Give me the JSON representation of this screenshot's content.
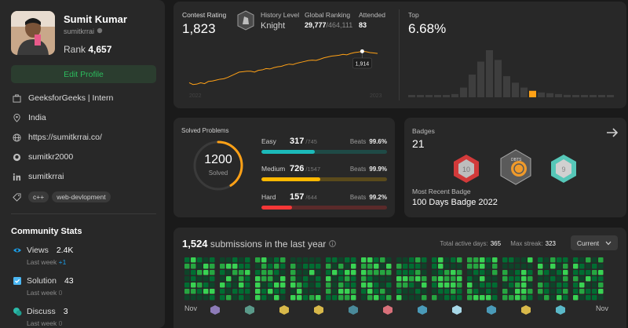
{
  "profile": {
    "name": "Sumit Kumar",
    "username": "sumitkrrai",
    "rank_label": "Rank",
    "rank_value": "4,657",
    "edit_label": "Edit Profile",
    "organization": "GeeksforGeeks | Intern",
    "location": "India",
    "website": "https://sumitkrrai.co/",
    "github": "sumitkr2000",
    "linkedin": "sumitkrrai",
    "skills": [
      "c++",
      "web-devlopment"
    ]
  },
  "community": {
    "title": "Community Stats",
    "items": [
      {
        "label": "Views",
        "value": "2.4K",
        "sub_label": "Last week",
        "sub_value": "+1",
        "color": "#1b9ee8"
      },
      {
        "label": "Solution",
        "value": "43",
        "sub_label": "Last week",
        "sub_value": "0",
        "color": "#4bb6f2"
      },
      {
        "label": "Discuss",
        "value": "3",
        "sub_label": "Last week",
        "sub_value": "0",
        "color": "#2cbbaa"
      }
    ]
  },
  "contest": {
    "rating_label": "Contest Rating",
    "rating_value": "1,823",
    "level_label": "History Level",
    "level_value": "Knight",
    "global_label": "Global Ranking",
    "global_rank": "29,777",
    "global_total": "/464,111",
    "attended_label": "Attended",
    "attended_value": "83",
    "tooltip_value": "1,914",
    "axis_start": "2022",
    "axis_end": "2023",
    "top_label": "Top",
    "top_value": "6.68%",
    "line_color": "#ffa116",
    "rating_series": [
      1560,
      1540,
      1545,
      1560,
      1550,
      1575,
      1580,
      1590,
      1600,
      1605,
      1620,
      1640,
      1660,
      1680,
      1685,
      1690,
      1690,
      1680,
      1700,
      1705,
      1720,
      1715,
      1730,
      1740,
      1745,
      1760,
      1770,
      1765,
      1780,
      1790,
      1800,
      1810,
      1815,
      1812,
      1825,
      1840,
      1850,
      1860,
      1865,
      1870,
      1880,
      1875,
      1890,
      1900,
      1905,
      1914,
      1910,
      1900,
      1895,
      1890
    ],
    "distribution": [
      2,
      2,
      2,
      2,
      2,
      4,
      12,
      28,
      44,
      58,
      46,
      26,
      18,
      12,
      8,
      6,
      5,
      4,
      3,
      2,
      2,
      2,
      2,
      2
    ]
  },
  "solved": {
    "title": "Solved Problems",
    "total": "1200",
    "total_label": "Solved",
    "rows": [
      {
        "label": "Easy",
        "count": "317",
        "total": "/745",
        "beats_label": "Beats",
        "beats": "99.6%",
        "fraction": 0.4255,
        "color": "#1cbaba",
        "track": "#1f4a46"
      },
      {
        "label": "Medium",
        "count": "726",
        "total": "/1547",
        "beats_label": "Beats",
        "beats": "99.9%",
        "fraction": 0.4693,
        "color": "#ffb800",
        "track": "#5a4a1c"
      },
      {
        "label": "Hard",
        "count": "157",
        "total": "/644",
        "beats_label": "Beats",
        "beats": "99.2%",
        "fraction": 0.2438,
        "color": "#f63737",
        "track": "#5a2a2a"
      }
    ],
    "ring_fraction": 0.41
  },
  "badges": {
    "label": "Badges",
    "count": "21",
    "recent_label": "Most Recent Badge",
    "recent_name": "100 Days Badge 2022",
    "badge_texts": [
      "10",
      "DBTS",
      "9"
    ]
  },
  "submissions": {
    "count": "1,524",
    "title_rest": "submissions in the last year",
    "active_label": "Total active days:",
    "active_value": "365",
    "streak_label": "Max streak:",
    "streak_value": "323",
    "period_label": "Current",
    "month_start": "Nov",
    "month_end": "Nov"
  }
}
